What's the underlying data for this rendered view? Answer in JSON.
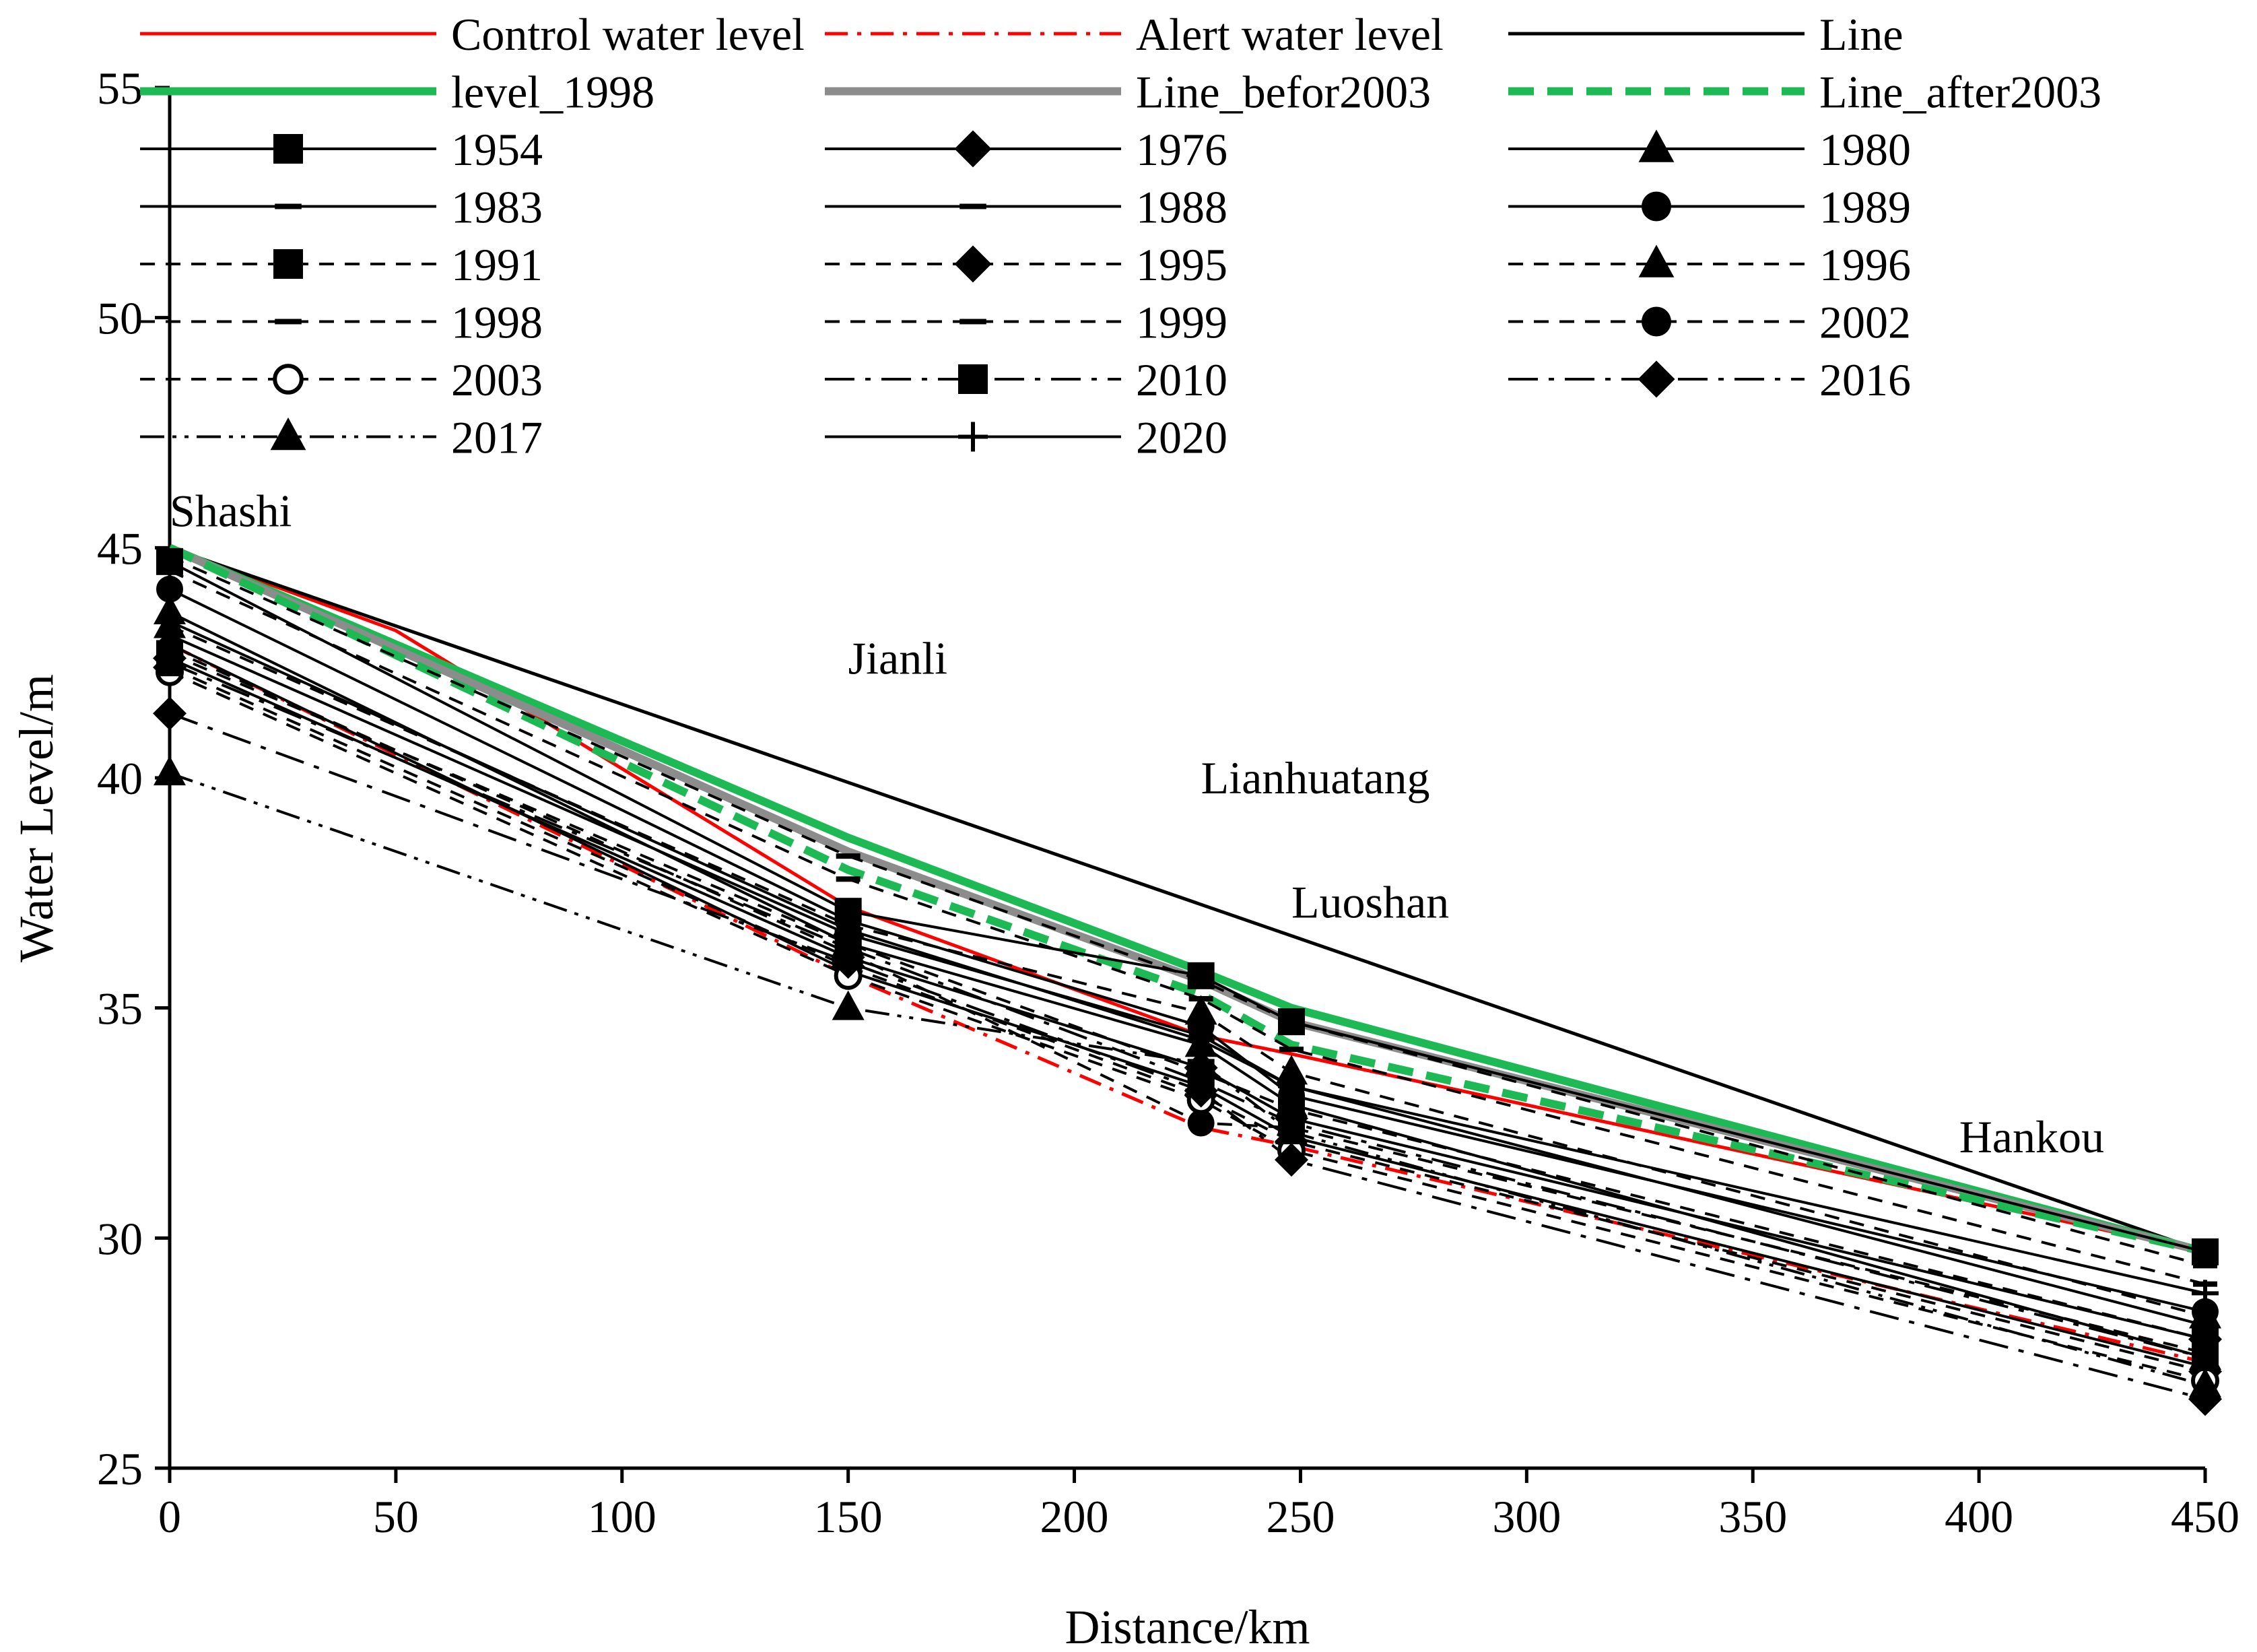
{
  "chart_data": {
    "type": "line",
    "title": "",
    "xlabel": "Distance/km",
    "ylabel": "Water Level/m",
    "xlim": [
      0,
      450
    ],
    "ylim": [
      25,
      55
    ],
    "xticks": [
      0,
      50,
      100,
      150,
      200,
      250,
      300,
      350,
      400,
      450
    ],
    "yticks": [
      25,
      30,
      35,
      40,
      45,
      50,
      55
    ],
    "x": [
      0,
      150,
      228,
      248,
      450
    ],
    "stations": [
      "Shashi",
      "Jianli",
      "Lianhuatang",
      "Luoshan",
      "Hankou"
    ],
    "reference_series": [
      {
        "name": "Control water level",
        "color": "#ff0000",
        "dash": "solid",
        "width": 5,
        "points": [
          [
            0,
            45.0
          ],
          [
            50,
            43.2
          ],
          [
            100,
            40.2
          ],
          [
            150,
            37.2
          ],
          [
            228,
            34.4
          ],
          [
            248,
            34.0
          ],
          [
            450,
            29.7
          ]
        ]
      },
      {
        "name": "Alert water level",
        "color": "#ff0000",
        "dash": "dashdot",
        "width": 5,
        "points": [
          [
            0,
            42.9
          ],
          [
            150,
            35.7
          ],
          [
            228,
            32.4
          ],
          [
            248,
            32.0
          ],
          [
            450,
            27.3
          ]
        ]
      },
      {
        "name": "Line",
        "color": "#000000",
        "dash": "solid",
        "width": 5,
        "points": [
          [
            0,
            45.0
          ],
          [
            450,
            29.7
          ]
        ]
      },
      {
        "name": "level_1998",
        "color": "#1db954",
        "dash": "solid",
        "width": 12,
        "points": [
          [
            0,
            45.0
          ],
          [
            150,
            38.7
          ],
          [
            228,
            35.8
          ],
          [
            248,
            35.0
          ],
          [
            450,
            29.7
          ]
        ]
      },
      {
        "name": "Line_befor2003",
        "color": "#8c8c8c",
        "dash": "solid",
        "width": 12,
        "points": [
          [
            0,
            45.0
          ],
          [
            150,
            38.4
          ],
          [
            228,
            35.6
          ],
          [
            248,
            34.7
          ],
          [
            450,
            29.7
          ]
        ]
      },
      {
        "name": "Line_after2003",
        "color": "#1db954",
        "dash": "dash",
        "width": 12,
        "points": [
          [
            0,
            45.0
          ],
          [
            150,
            38.0
          ],
          [
            228,
            35.3
          ],
          [
            248,
            34.2
          ],
          [
            450,
            29.7
          ]
        ]
      }
    ],
    "series": [
      {
        "name": "1954",
        "marker": "square",
        "dash": "solid",
        "values": [
          44.7,
          37.1,
          35.7,
          34.7,
          29.7
        ]
      },
      {
        "name": "1976",
        "marker": "diamond",
        "dash": "solid",
        "values": [
          42.6,
          36.1,
          33.7,
          32.6,
          27.8
        ]
      },
      {
        "name": "1980",
        "marker": "triangle",
        "dash": "solid",
        "values": [
          43.6,
          36.4,
          34.2,
          32.9,
          27.4
        ]
      },
      {
        "name": "1983",
        "marker": "dash",
        "dash": "solid",
        "values": [
          43.1,
          36.6,
          34.4,
          33.3,
          28.1
        ]
      },
      {
        "name": "1988",
        "marker": "dash",
        "dash": "solid",
        "values": [
          42.9,
          35.8,
          33.3,
          32.2,
          27.2
        ]
      },
      {
        "name": "1989",
        "marker": "circle",
        "dash": "solid",
        "values": [
          44.1,
          36.9,
          34.6,
          33.1,
          28.4
        ]
      },
      {
        "name": "1991",
        "marker": "square",
        "dash": "dashed",
        "values": [
          42.7,
          36.4,
          33.6,
          32.8,
          27.8
        ]
      },
      {
        "name": "1995",
        "marker": "diamond",
        "dash": "dashed",
        "values": [
          42.4,
          35.9,
          33.1,
          32.1,
          27.1
        ]
      },
      {
        "name": "1996",
        "marker": "triangle",
        "dash": "dashed",
        "values": [
          43.3,
          36.8,
          34.9,
          33.6,
          28.3
        ]
      },
      {
        "name": "1998",
        "marker": "dash",
        "dash": "dashed",
        "values": [
          44.8,
          38.3,
          35.6,
          34.7,
          29.4
        ]
      },
      {
        "name": "1999",
        "marker": "dash",
        "dash": "dashed",
        "values": [
          44.5,
          37.8,
          35.2,
          34.1,
          29.0
        ]
      },
      {
        "name": "2002",
        "marker": "circle",
        "dash": "dashed",
        "values": [
          42.8,
          36.2,
          32.5,
          32.4,
          27.5
        ]
      },
      {
        "name": "2003",
        "marker": "circle-open",
        "dash": "dashed",
        "values": [
          42.3,
          35.7,
          33.0,
          31.9,
          26.9
        ]
      },
      {
        "name": "2010",
        "marker": "square",
        "dash": "longdashdot",
        "values": [
          42.5,
          36.3,
          33.4,
          32.5,
          27.4
        ]
      },
      {
        "name": "2016",
        "marker": "diamond",
        "dash": "longdashdot",
        "values": [
          41.4,
          36.0,
          33.2,
          31.7,
          26.5
        ]
      },
      {
        "name": "2017",
        "marker": "triangle",
        "dash": "dashdotdot",
        "values": [
          40.1,
          35.0,
          33.8,
          32.3,
          26.8
        ]
      },
      {
        "name": "2020",
        "marker": "plus",
        "dash": "solid",
        "values": [
          43.4,
          36.7,
          34.3,
          33.3,
          28.8
        ]
      }
    ],
    "legend": {
      "placement": "top",
      "columns": 3,
      "entries": [
        "Control water level",
        "Alert water level",
        "Line",
        "level_1998",
        "Line_befor2003",
        "Line_after2003",
        "1954",
        "1976",
        "1980",
        "1983",
        "1988",
        "1989",
        "1991",
        "1995",
        "1996",
        "1998",
        "1999",
        "2002",
        "2003",
        "2010",
        "2016",
        "2017",
        "2020"
      ]
    },
    "annotations": [
      {
        "text": "Shashi",
        "x": 0,
        "y": 45.2
      },
      {
        "text": "Jianli",
        "x": 150,
        "y": 42.0
      },
      {
        "text": "Lianhuatang",
        "x": 228,
        "y": 39.4
      },
      {
        "text": "Luoshan",
        "x": 248,
        "y": 36.7
      },
      {
        "text": "Hankou",
        "x": 450,
        "y": 31.6
      }
    ],
    "grid": false
  }
}
